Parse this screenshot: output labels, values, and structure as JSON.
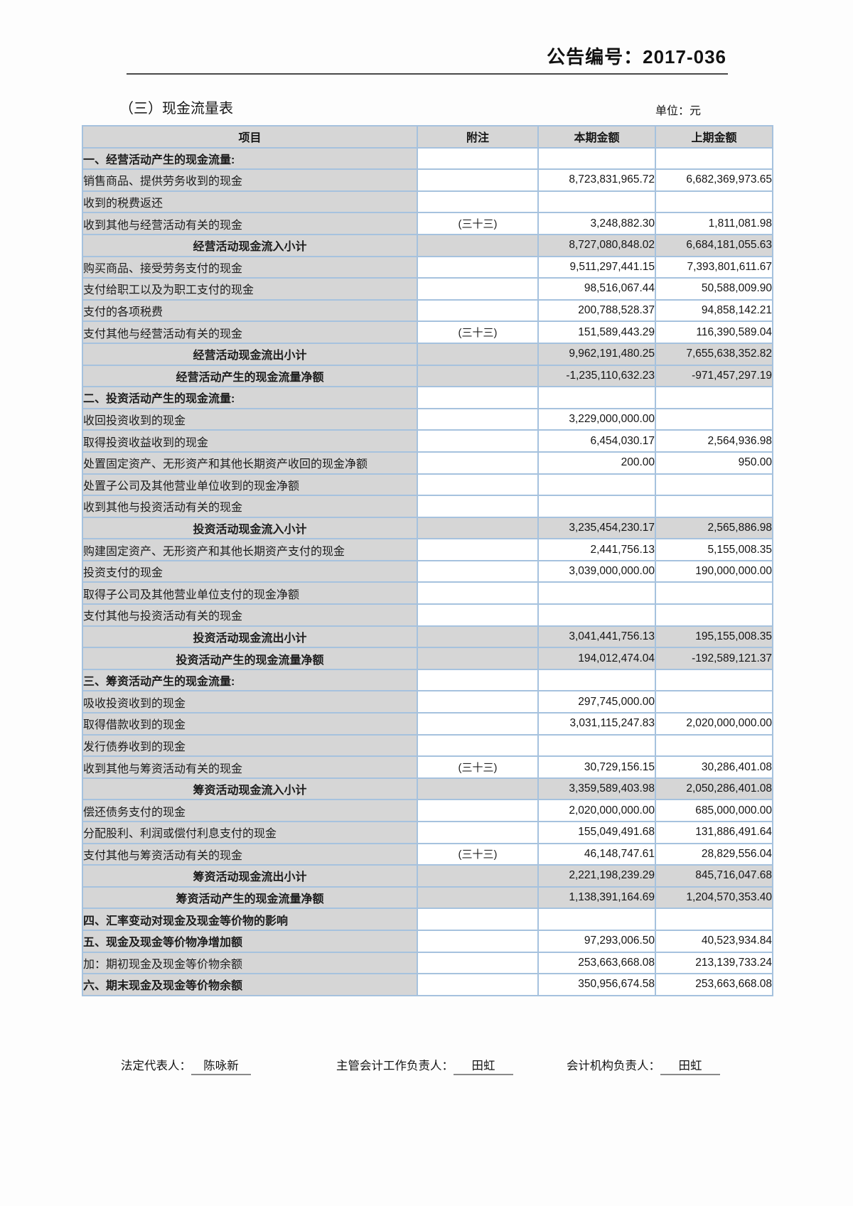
{
  "header": {
    "doc_number": "公告编号：2017-036",
    "title": "（三）现金流量表",
    "unit": "单位：元"
  },
  "table": {
    "headers": [
      "项目",
      "附注",
      "本期金额",
      "上期金额"
    ],
    "rows": [
      {
        "type": "section",
        "label": "一、经营活动产生的现金流量:",
        "note": "",
        "current": "",
        "prior": ""
      },
      {
        "type": "item",
        "label": "销售商品、提供劳务收到的现金",
        "note": "",
        "current": "8,723,831,965.72",
        "prior": "6,682,369,973.65"
      },
      {
        "type": "item",
        "label": "收到的税费返还",
        "note": "",
        "current": "",
        "prior": ""
      },
      {
        "type": "item",
        "label": "收到其他与经营活动有关的现金",
        "note": "(三十三)",
        "current": "3,248,882.30",
        "prior": "1,811,081.98"
      },
      {
        "type": "subtotal",
        "label": "经营活动现金流入小计",
        "note": "",
        "current": "8,727,080,848.02",
        "prior": "6,684,181,055.63"
      },
      {
        "type": "item",
        "label": "购买商品、接受劳务支付的现金",
        "note": "",
        "current": "9,511,297,441.15",
        "prior": "7,393,801,611.67"
      },
      {
        "type": "item",
        "label": "支付给职工以及为职工支付的现金",
        "note": "",
        "current": "98,516,067.44",
        "prior": "50,588,009.90"
      },
      {
        "type": "item",
        "label": "支付的各项税费",
        "note": "",
        "current": "200,788,528.37",
        "prior": "94,858,142.21"
      },
      {
        "type": "item",
        "label": "支付其他与经营活动有关的现金",
        "note": "(三十三)",
        "current": "151,589,443.29",
        "prior": "116,390,589.04"
      },
      {
        "type": "subtotal",
        "label": "经营活动现金流出小计",
        "note": "",
        "current": "9,962,191,480.25",
        "prior": "7,655,638,352.82"
      },
      {
        "type": "subtotal",
        "label": "经营活动产生的现金流量净额",
        "note": "",
        "current": "-1,235,110,632.23",
        "prior": "-971,457,297.19"
      },
      {
        "type": "section",
        "label": "二、投资活动产生的现金流量:",
        "note": "",
        "current": "",
        "prior": ""
      },
      {
        "type": "item",
        "label": "收回投资收到的现金",
        "note": "",
        "current": "3,229,000,000.00",
        "prior": ""
      },
      {
        "type": "item",
        "label": "取得投资收益收到的现金",
        "note": "",
        "current": "6,454,030.17",
        "prior": "2,564,936.98"
      },
      {
        "type": "item",
        "label": "处置固定资产、无形资产和其他长期资产收回的现金净额",
        "note": "",
        "current": "200.00",
        "prior": "950.00"
      },
      {
        "type": "item",
        "label": "处置子公司及其他营业单位收到的现金净额",
        "note": "",
        "current": "",
        "prior": ""
      },
      {
        "type": "item",
        "label": "收到其他与投资活动有关的现金",
        "note": "",
        "current": "",
        "prior": ""
      },
      {
        "type": "subtotal",
        "label": "投资活动现金流入小计",
        "note": "",
        "current": "3,235,454,230.17",
        "prior": "2,565,886.98"
      },
      {
        "type": "item",
        "label": "购建固定资产、无形资产和其他长期资产支付的现金",
        "note": "",
        "current": "2,441,756.13",
        "prior": "5,155,008.35"
      },
      {
        "type": "item",
        "label": "投资支付的现金",
        "note": "",
        "current": "3,039,000,000.00",
        "prior": "190,000,000.00"
      },
      {
        "type": "item",
        "label": "取得子公司及其他营业单位支付的现金净额",
        "note": "",
        "current": "",
        "prior": ""
      },
      {
        "type": "item",
        "label": "支付其他与投资活动有关的现金",
        "note": "",
        "current": "",
        "prior": ""
      },
      {
        "type": "subtotal",
        "label": "投资活动现金流出小计",
        "note": "",
        "current": "3,041,441,756.13",
        "prior": "195,155,008.35"
      },
      {
        "type": "subtotal",
        "label": "投资活动产生的现金流量净额",
        "note": "",
        "current": "194,012,474.04",
        "prior": "-192,589,121.37"
      },
      {
        "type": "section",
        "label": "三、筹资活动产生的现金流量:",
        "note": "",
        "current": "",
        "prior": ""
      },
      {
        "type": "item",
        "label": "吸收投资收到的现金",
        "note": "",
        "current": "297,745,000.00",
        "prior": ""
      },
      {
        "type": "item",
        "label": "取得借款收到的现金",
        "note": "",
        "current": "3,031,115,247.83",
        "prior": "2,020,000,000.00"
      },
      {
        "type": "item",
        "label": "发行债券收到的现金",
        "note": "",
        "current": "",
        "prior": ""
      },
      {
        "type": "item",
        "label": "收到其他与筹资活动有关的现金",
        "note": "(三十三)",
        "current": "30,729,156.15",
        "prior": "30,286,401.08"
      },
      {
        "type": "subtotal",
        "label": "筹资活动现金流入小计",
        "note": "",
        "current": "3,359,589,403.98",
        "prior": "2,050,286,401.08"
      },
      {
        "type": "item",
        "label": "偿还债务支付的现金",
        "note": "",
        "current": "2,020,000,000.00",
        "prior": "685,000,000.00"
      },
      {
        "type": "item",
        "label": "分配股利、利润或偿付利息支付的现金",
        "note": "",
        "current": "155,049,491.68",
        "prior": "131,886,491.64"
      },
      {
        "type": "item",
        "label": "支付其他与筹资活动有关的现金",
        "note": "(三十三)",
        "current": "46,148,747.61",
        "prior": "28,829,556.04"
      },
      {
        "type": "subtotal",
        "label": "筹资活动现金流出小计",
        "note": "",
        "current": "2,221,198,239.29",
        "prior": "845,716,047.68"
      },
      {
        "type": "subtotal",
        "label": "筹资活动产生的现金流量净额",
        "note": "",
        "current": "1,138,391,164.69",
        "prior": "1,204,570,353.40"
      },
      {
        "type": "section",
        "label": "四、汇率变动对现金及现金等价物的影响",
        "note": "",
        "current": "",
        "prior": ""
      },
      {
        "type": "section",
        "label": "五、现金及现金等价物净增加额",
        "note": "",
        "current": "97,293,006.50",
        "prior": "40,523,934.84"
      },
      {
        "type": "item",
        "label": "加：期初现金及现金等价物余额",
        "note": "",
        "current": "253,663,668.08",
        "prior": "213,139,733.24"
      },
      {
        "type": "section",
        "label": "六、期末现金及现金等价物余额",
        "note": "",
        "current": "350,956,674.58",
        "prior": "253,663,668.08"
      }
    ]
  },
  "footer": {
    "legal_rep_label": "法定代表人：",
    "legal_rep_name": "陈咏新",
    "chief_accountant_label": "主管会计工作负责人：",
    "chief_accountant_name": "田虹",
    "accounting_org_label": "会计机构负责人：",
    "accounting_org_name": "田虹"
  },
  "colors": {
    "cell_gray": "#d6d6d6",
    "border_blue": "#a6c2de",
    "rule_dark": "#4a4a4a",
    "underline_gray": "#8a8a8a"
  }
}
